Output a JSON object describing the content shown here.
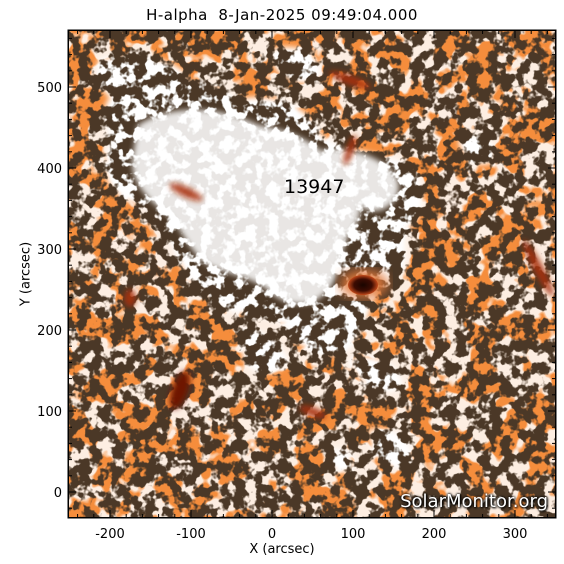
{
  "title": "H-alpha  8-Jan-2025 09:49:04.000",
  "axes": {
    "xlabel": "X (arcsec)",
    "ylabel": "Y (arcsec)",
    "xticks": [
      "-200",
      "-100",
      "0",
      "100",
      "200",
      "300"
    ],
    "yticks": [
      "0",
      "100",
      "200",
      "300",
      "400",
      "500"
    ]
  },
  "active_region_label": "13947",
  "watermark": "SolarMonitor.org",
  "colors": {
    "background": "#f58d3c",
    "plage": "#ffffff",
    "network": "#1a0f08",
    "filament": "#7a1d05",
    "sunspot": "#2a0a02"
  }
}
